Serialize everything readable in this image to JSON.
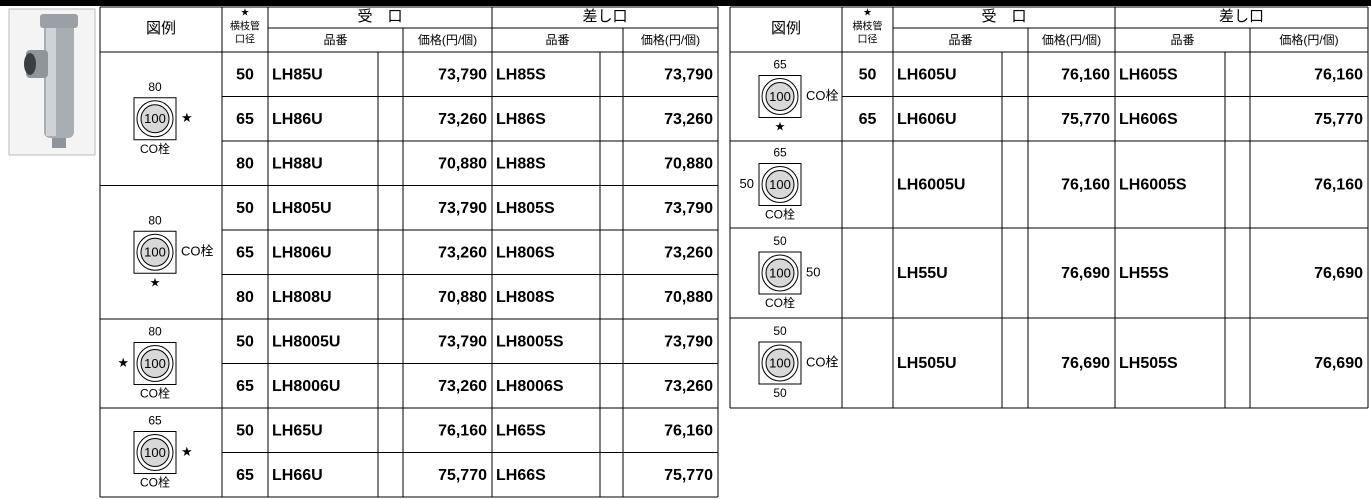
{
  "header": {
    "legend": "図例",
    "star": "★",
    "branch_1": "横枝管",
    "branch_2": "口径",
    "socket": "受　口",
    "spigot": "差し口",
    "code": "品番",
    "price": "価格(円/個)"
  },
  "left": {
    "groups": [
      {
        "diagram": {
          "pipe": "100",
          "top": "80",
          "right": "★",
          "bottom": "CO栓"
        },
        "rows": [
          [
            "50",
            "LH85U",
            "73,790",
            "LH85S",
            "73,790"
          ],
          [
            "65",
            "LH86U",
            "73,260",
            "LH86S",
            "73,260"
          ],
          [
            "80",
            "LH88U",
            "70,880",
            "LH88S",
            "70,880"
          ]
        ]
      },
      {
        "diagram": {
          "pipe": "100",
          "top": "80",
          "right": "CO栓",
          "bottom": "★"
        },
        "rows": [
          [
            "50",
            "LH805U",
            "73,790",
            "LH805S",
            "73,790"
          ],
          [
            "65",
            "LH806U",
            "73,260",
            "LH806S",
            "73,260"
          ],
          [
            "80",
            "LH808U",
            "70,880",
            "LH808S",
            "70,880"
          ]
        ]
      },
      {
        "diagram": {
          "pipe": "100",
          "top": "80",
          "left": "★",
          "bottom": "CO栓"
        },
        "rows": [
          [
            "50",
            "LH8005U",
            "73,790",
            "LH8005S",
            "73,790"
          ],
          [
            "65",
            "LH8006U",
            "73,260",
            "LH8006S",
            "73,260"
          ]
        ]
      },
      {
        "diagram": {
          "pipe": "100",
          "top": "65",
          "right": "★",
          "bottom": "CO栓"
        },
        "rows": [
          [
            "50",
            "LH65U",
            "76,160",
            "LH65S",
            "76,160"
          ],
          [
            "65",
            "LH66U",
            "75,770",
            "LH66S",
            "75,770"
          ]
        ]
      }
    ]
  },
  "right": {
    "groups": [
      {
        "diagram": {
          "pipe": "100",
          "top": "65",
          "right": "CO栓",
          "bottom": "★"
        },
        "rows": [
          [
            "50",
            "LH605U",
            "76,160",
            "LH605S",
            "76,160"
          ],
          [
            "65",
            "LH606U",
            "75,770",
            "LH606S",
            "75,770"
          ]
        ]
      },
      {
        "diagram": {
          "pipe": "100",
          "top": "65",
          "left": "50",
          "bottom": "CO栓"
        },
        "rows": [
          [
            null,
            "LH6005U",
            "76,160",
            "LH6005S",
            "76,160"
          ]
        ]
      },
      {
        "diagram": {
          "pipe": "100",
          "top": "50",
          "right": "50",
          "bottom": "CO栓"
        },
        "rows": [
          [
            null,
            "LH55U",
            "76,690",
            "LH55S",
            "76,690"
          ]
        ]
      },
      {
        "diagram": {
          "pipe": "100",
          "top": "50",
          "right": "CO栓",
          "bottom": "50"
        },
        "rows": [
          [
            null,
            "LH505U",
            "76,690",
            "LH505S",
            "76,690"
          ]
        ]
      }
    ]
  }
}
